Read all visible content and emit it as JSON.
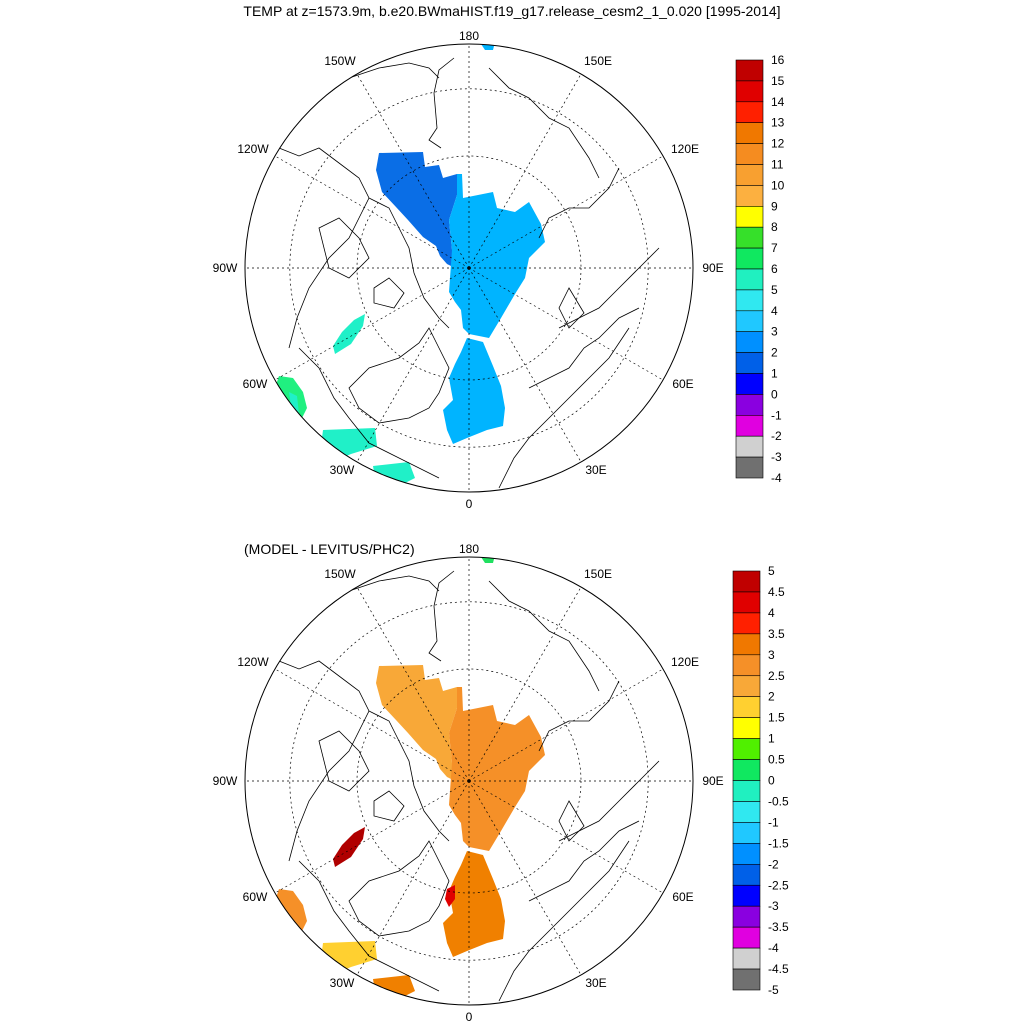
{
  "chart_data": [
    {
      "type": "heatmap",
      "projection": "north-polar-stereographic",
      "title": "TEMP at z=1573.9m, b.e20.BWmaHIST.f19_g17.release_cesm2_1_0.020 [1995-2014]",
      "subtitle": "",
      "longitude_labels": [
        "180",
        "150E",
        "120E",
        "90E",
        "60E",
        "30E",
        "0",
        "30W",
        "60W",
        "90W",
        "120W",
        "150W"
      ],
      "colorbar": {
        "labels": [
          "16",
          "15",
          "14",
          "13",
          "12",
          "11",
          "10",
          "9",
          "8",
          "7",
          "6",
          "5",
          "4",
          "3",
          "2",
          "1",
          "0",
          "-1",
          "-2",
          "-3",
          "-4"
        ],
        "colors": [
          "#c00000",
          "#e00000",
          "#ff2000",
          "#f07800",
          "#f58c20",
          "#f8a030",
          "#fcb040",
          "#ffff00",
          "#36e02a",
          "#10e860",
          "#20f0c0",
          "#30e8f0",
          "#20c8ff",
          "#0090ff",
          "#0060e8",
          "#0000ff",
          "#8a00e0",
          "#e000e0",
          "#d0d0d0",
          "#707070"
        ]
      },
      "regions": [
        {
          "name": "canada-basin",
          "value": 1.7,
          "color": "#0a6ee6"
        },
        {
          "name": "eurasian-basin-nansen",
          "value": 2.4,
          "color": "#00b4ff"
        },
        {
          "name": "fram-strait-greenland-sea",
          "value": 2.4,
          "color": "#00b4ff"
        },
        {
          "name": "baffin-bay",
          "value": 4.5,
          "color": "#20f0c8"
        },
        {
          "name": "labrador-sea-south",
          "value": 5.5,
          "color": "#20f080"
        },
        {
          "name": "labrador-sea-north",
          "value": 4.5,
          "color": "#20f0c8"
        },
        {
          "name": "irminger-sea",
          "value": 4.5,
          "color": "#20f0c8"
        },
        {
          "name": "iceland-basin",
          "value": 4.5,
          "color": "#20f0c8"
        },
        {
          "name": "bering-sea-edge",
          "value": 2.4,
          "color": "#00b4ff"
        }
      ]
    },
    {
      "type": "heatmap",
      "projection": "north-polar-stereographic",
      "title": "(MODEL - LEVITUS/PHC2)",
      "longitude_labels": [
        "180",
        "150E",
        "120E",
        "90E",
        "60E",
        "30E",
        "0",
        "30W",
        "60W",
        "90W",
        "120W",
        "150W"
      ],
      "colorbar": {
        "labels": [
          "5",
          "4.5",
          "4",
          "3.5",
          "3",
          "2.5",
          "2",
          "1.5",
          "1",
          "0.5",
          "0",
          "-0.5",
          "-1",
          "-1.5",
          "-2",
          "-2.5",
          "-3",
          "-3.5",
          "-4",
          "-4.5",
          "-5"
        ],
        "colors": [
          "#c00000",
          "#e00000",
          "#ff2000",
          "#f07800",
          "#f59028",
          "#f8a838",
          "#ffd030",
          "#ffff00",
          "#50f000",
          "#10e860",
          "#20f0c0",
          "#30e8f0",
          "#20c8ff",
          "#0090ff",
          "#0060e8",
          "#0000ff",
          "#8a00e0",
          "#e000e0",
          "#d0d0d0",
          "#707070"
        ]
      },
      "regions": [
        {
          "name": "canada-basin",
          "value": 2.3,
          "color": "#f8a838"
        },
        {
          "name": "eurasian-basin-nansen",
          "value": 2.8,
          "color": "#f59028"
        },
        {
          "name": "fram-strait-greenland-sea",
          "value": 3.2,
          "color": "#f08000"
        },
        {
          "name": "baffin-bay",
          "value": 5,
          "color": "#b00000"
        },
        {
          "name": "labrador-sea-south",
          "value": 2.7,
          "color": "#f59028"
        },
        {
          "name": "irminger-sea",
          "value": 1.8,
          "color": "#ffd030"
        },
        {
          "name": "iceland-basin",
          "value": 3.2,
          "color": "#f08000"
        },
        {
          "name": "fram-strait-edge",
          "value": 4.2,
          "color": "#e00000"
        },
        {
          "name": "bering-sea-edge",
          "value": 0.7,
          "color": "#20e060"
        }
      ]
    }
  ]
}
